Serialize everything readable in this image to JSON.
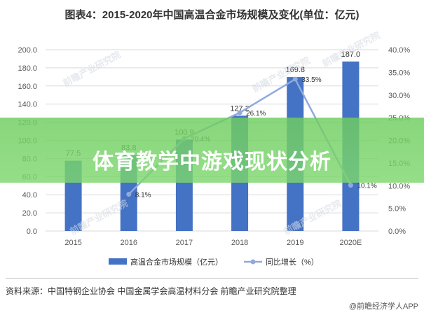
{
  "header": {
    "title": "图表4：2015-2020年中国高温合金市场规模及变化(单位：亿元)"
  },
  "banner": {
    "text": "体育教学中游戏现状分析"
  },
  "footer": {
    "source": "资料来源：中国特钢企业协会 中国金属学会高温材料分会 前瞻产业研究院整理",
    "credit": "@前瞻经济学人APP"
  },
  "watermark": {
    "text": "前瞻产业研究院"
  },
  "chart_data": {
    "type": "bar",
    "categories": [
      "2015",
      "2016",
      "2017",
      "2018",
      "2019",
      "2020E"
    ],
    "series": [
      {
        "name": "高温合金市场规模（亿元）",
        "type": "bar",
        "axis": "left",
        "values": [
          77.5,
          83.8,
          100.9,
          127.2,
          169.8,
          187.0
        ],
        "labels": [
          "77.5",
          "83.8",
          "100.9",
          "127.2",
          "169.8",
          "187.0"
        ]
      },
      {
        "name": "同比增长（%）",
        "type": "line",
        "axis": "right",
        "values": [
          null,
          8.1,
          20.4,
          26.1,
          33.5,
          10.1
        ],
        "labels": [
          "",
          "8.1%",
          "20.4%",
          "26.1%",
          "33.5%",
          "10.1%"
        ]
      }
    ],
    "ylim_left": [
      0,
      200
    ],
    "yticks_left": [
      "0.0",
      "20.0",
      "40.0",
      "60.0",
      "80.0",
      "100.0",
      "120.0",
      "140.0",
      "160.0",
      "180.0",
      "200.0"
    ],
    "ylim_right": [
      0,
      40
    ],
    "yticks_right": [
      "0.0%",
      "5.0%",
      "10.0%",
      "15.0%",
      "20.0%",
      "25.0%",
      "30.0%",
      "35.0%",
      "40.0%"
    ],
    "grid": true,
    "legend": "bottom",
    "colors": {
      "bar": "#4472c4",
      "line": "#8faadc",
      "grid": "#d9d9d9",
      "text": "#595959"
    }
  }
}
